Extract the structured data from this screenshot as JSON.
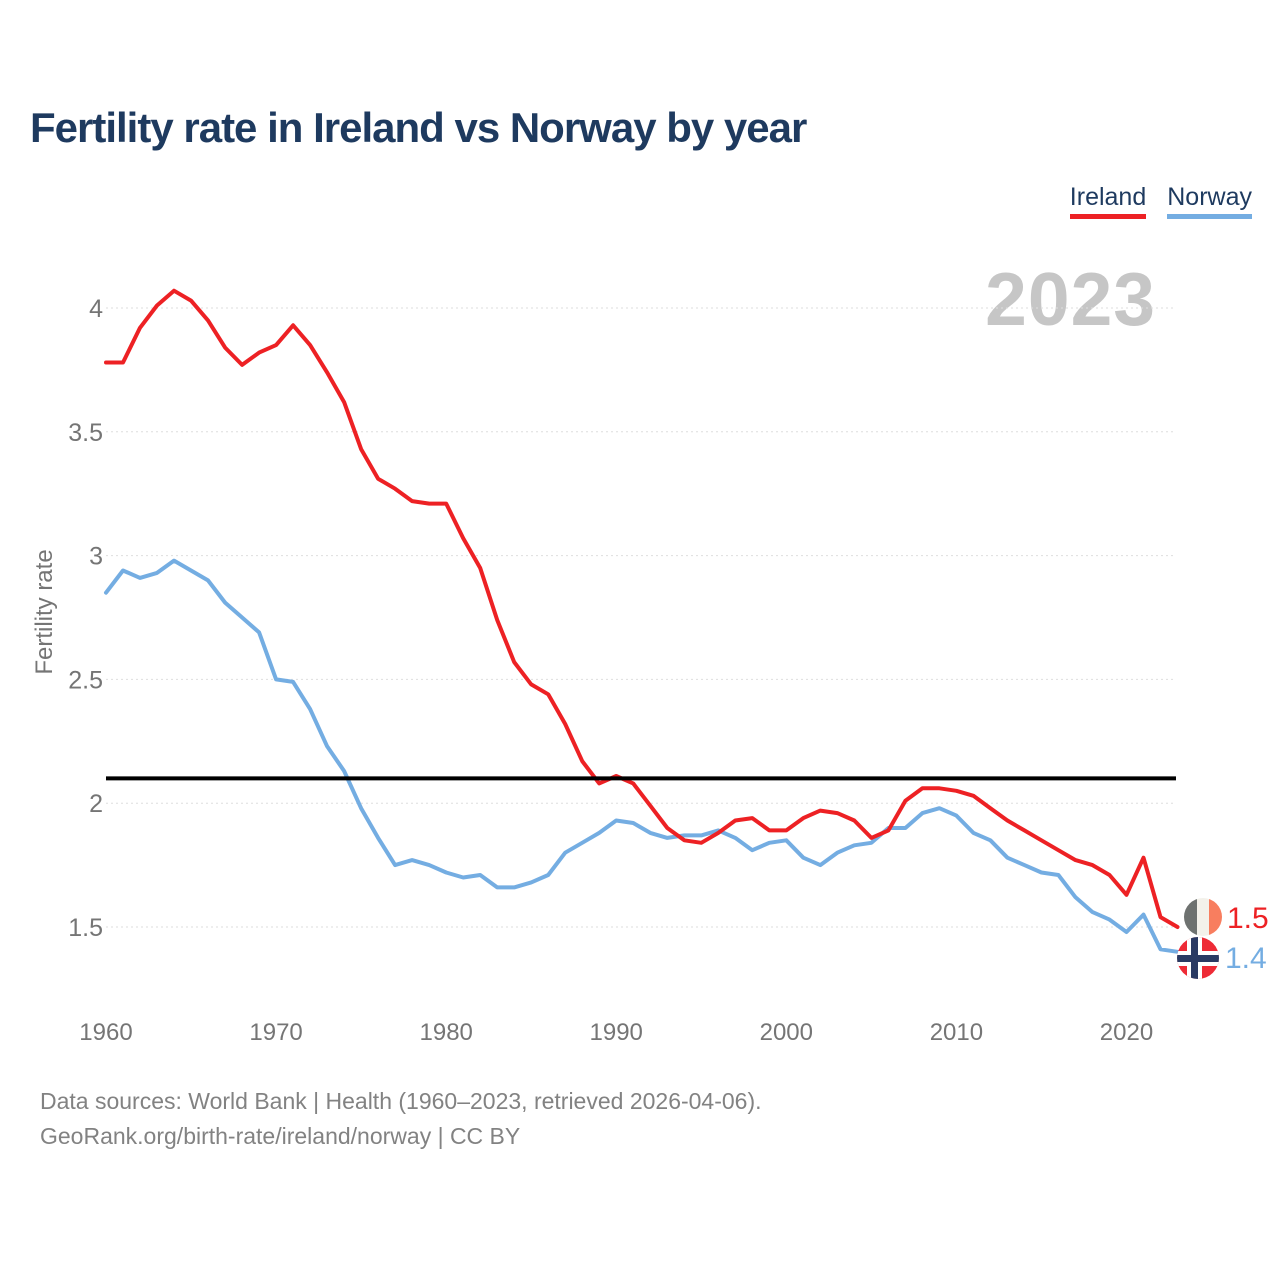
{
  "header": {
    "title": "Fertility rate in Ireland vs Norway by year"
  },
  "legend": {
    "items": [
      {
        "label": "Ireland",
        "color": "#ed2124"
      },
      {
        "label": "Norway",
        "color": "#74ade2"
      }
    ]
  },
  "watermark": "2023",
  "chart_data": {
    "type": "line",
    "title": "Fertility rate in Ireland vs Norway by year",
    "xlabel": "",
    "ylabel": "Fertility rate",
    "grid": "horizontal-dotted",
    "legend_position": "top-right",
    "xlim": [
      1960,
      2023
    ],
    "ylim": [
      1.3,
      4.15
    ],
    "x_ticks": [
      1960,
      1970,
      1980,
      1990,
      2000,
      2010,
      2020
    ],
    "y_ticks": [
      4,
      3.5,
      3,
      2.5,
      2,
      1.5
    ],
    "reference_line": {
      "value": 2.1,
      "color": "#000000"
    },
    "x": [
      1960,
      1961,
      1962,
      1963,
      1964,
      1965,
      1966,
      1967,
      1968,
      1969,
      1970,
      1971,
      1972,
      1973,
      1974,
      1975,
      1976,
      1977,
      1978,
      1979,
      1980,
      1981,
      1982,
      1983,
      1984,
      1985,
      1986,
      1987,
      1988,
      1989,
      1990,
      1991,
      1992,
      1993,
      1994,
      1995,
      1996,
      1997,
      1998,
      1999,
      2000,
      2001,
      2002,
      2003,
      2004,
      2005,
      2006,
      2007,
      2008,
      2009,
      2010,
      2011,
      2012,
      2013,
      2014,
      2015,
      2016,
      2017,
      2018,
      2019,
      2020,
      2021,
      2022,
      2023
    ],
    "series": [
      {
        "name": "Ireland",
        "color": "#ed2124",
        "values": [
          3.78,
          3.78,
          3.92,
          4.01,
          4.07,
          4.03,
          3.95,
          3.84,
          3.77,
          3.82,
          3.85,
          3.93,
          3.85,
          3.74,
          3.62,
          3.43,
          3.31,
          3.27,
          3.22,
          3.21,
          3.21,
          3.07,
          2.95,
          2.74,
          2.57,
          2.48,
          2.44,
          2.32,
          2.17,
          2.08,
          2.11,
          2.08,
          1.99,
          1.9,
          1.85,
          1.84,
          1.88,
          1.93,
          1.94,
          1.89,
          1.89,
          1.94,
          1.97,
          1.96,
          1.93,
          1.86,
          1.89,
          2.01,
          2.06,
          2.06,
          2.05,
          2.03,
          1.98,
          1.93,
          1.89,
          1.85,
          1.81,
          1.77,
          1.75,
          1.71,
          1.63,
          1.78,
          1.54,
          1.5
        ]
      },
      {
        "name": "Norway",
        "color": "#74ade2",
        "values": [
          2.85,
          2.94,
          2.91,
          2.93,
          2.98,
          2.94,
          2.9,
          2.81,
          2.75,
          2.69,
          2.5,
          2.49,
          2.38,
          2.23,
          2.13,
          1.98,
          1.86,
          1.75,
          1.77,
          1.75,
          1.72,
          1.7,
          1.71,
          1.66,
          1.66,
          1.68,
          1.71,
          1.8,
          1.84,
          1.88,
          1.93,
          1.92,
          1.88,
          1.86,
          1.87,
          1.87,
          1.89,
          1.86,
          1.81,
          1.84,
          1.85,
          1.78,
          1.75,
          1.8,
          1.83,
          1.84,
          1.9,
          1.9,
          1.96,
          1.98,
          1.95,
          1.88,
          1.85,
          1.78,
          1.75,
          1.72,
          1.71,
          1.62,
          1.56,
          1.53,
          1.48,
          1.55,
          1.41,
          1.4
        ]
      }
    ],
    "end_labels": {
      "ireland": "1.5",
      "norway": "1.4"
    }
  },
  "footer": {
    "line1": "Data sources: World Bank | Health (1960–2023, retrieved 2026-04-06).",
    "line2": "GeoRank.org/birth-rate/ireland/norway | CC BY"
  }
}
